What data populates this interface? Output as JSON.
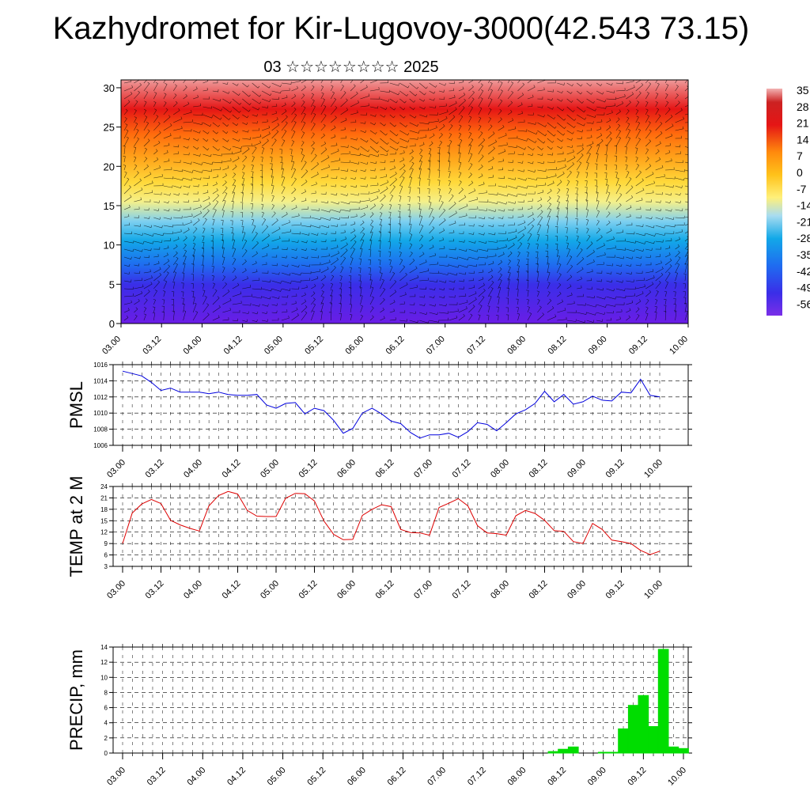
{
  "title": "Kazhydromet for Kir-Lugovoy-3000(42.543 73.15)",
  "subtitle": "03 ☆☆☆☆☆☆☆☆ 2025",
  "colors": {
    "pmsl_line": "#0000dd",
    "temp_line": "#dd0000",
    "precip_bar": "#00dd00"
  },
  "chart_data": [
    {
      "type": "heatmap",
      "title": "",
      "x_ticks": [
        "03.00",
        "03.12",
        "04.00",
        "04.12",
        "05.00",
        "05.12",
        "06.00",
        "06.12",
        "07.00",
        "07.12",
        "08.00",
        "08.12",
        "09.00",
        "09.12",
        "10.00"
      ],
      "y_ticks": [
        0,
        5,
        10,
        15,
        20,
        25,
        30
      ],
      "ylim": [
        0,
        31
      ],
      "colorbar_labels": [
        "35",
        "28",
        "21",
        "14",
        "7",
        "0",
        "-7",
        "-14",
        "-21",
        "-28",
        "-35",
        "-42",
        "-49",
        "-56"
      ],
      "overlay": "wind barbs"
    },
    {
      "type": "line",
      "ylabel": "PMSL",
      "x_ticks": [
        "03.00",
        "03.12",
        "04.00",
        "04.12",
        "05.00",
        "05.12",
        "06.00",
        "06.12",
        "07.00",
        "07.12",
        "08.00",
        "08.12",
        "09.00",
        "09.12",
        "10.00"
      ],
      "y_ticks": [
        1006,
        1008,
        1010,
        1012,
        1014,
        1016
      ],
      "ylim": [
        1006,
        1016
      ],
      "x_step_hours": 3,
      "values": [
        1015.2,
        1014.9,
        1014.6,
        1013.8,
        1012.8,
        1013.1,
        1012.6,
        1012.6,
        1012.6,
        1012.4,
        1012.6,
        1012.3,
        1012.2,
        1012.2,
        1012.3,
        1011.0,
        1010.6,
        1011.2,
        1011.3,
        1009.9,
        1010.6,
        1010.3,
        1009.1,
        1007.5,
        1008.1,
        1010.0,
        1010.6,
        1009.9,
        1009.0,
        1008.7,
        1007.6,
        1006.9,
        1007.3,
        1007.3,
        1007.5,
        1007.0,
        1007.7,
        1008.8,
        1008.6,
        1007.8,
        1008.8,
        1009.9,
        1010.4,
        1011.2,
        1012.7,
        1011.4,
        1012.3,
        1011.1,
        1011.4,
        1012.1,
        1011.6,
        1011.5,
        1012.6,
        1012.5,
        1014.2,
        1012.2,
        1012.0
      ]
    },
    {
      "type": "line",
      "ylabel": "TEMP at 2 M",
      "x_ticks": [
        "03.00",
        "03.12",
        "04.00",
        "04.12",
        "05.00",
        "05.12",
        "06.00",
        "06.12",
        "07.00",
        "07.12",
        "08.00",
        "08.12",
        "09.00",
        "09.12",
        "10.00"
      ],
      "y_ticks": [
        3,
        6,
        9,
        12,
        15,
        18,
        21,
        24
      ],
      "ylim": [
        3,
        24
      ],
      "x_step_hours": 3,
      "values": [
        9.0,
        17.0,
        19.4,
        20.6,
        19.5,
        15.1,
        13.9,
        13.0,
        12.3,
        18.9,
        21.6,
        22.7,
        22.0,
        17.7,
        16.2,
        16.1,
        16.1,
        20.9,
        22.2,
        22.1,
        20.2,
        14.9,
        11.4,
        10.0,
        10.1,
        16.4,
        18.0,
        19.2,
        18.7,
        12.7,
        11.9,
        11.8,
        11.2,
        18.5,
        19.6,
        20.8,
        18.9,
        13.7,
        11.8,
        11.6,
        11.2,
        16.3,
        17.7,
        16.9,
        15.1,
        12.4,
        12.2,
        9.5,
        9.0,
        14.3,
        12.7,
        9.9,
        9.5,
        9.0,
        7.2,
        6.1,
        7.0
      ]
    },
    {
      "type": "bar",
      "ylabel": "PRECIP, mm",
      "x_ticks": [
        "03.00",
        "03.12",
        "04.00",
        "04.12",
        "05.00",
        "05.12",
        "06.00",
        "06.12",
        "07.00",
        "07.12",
        "08.00",
        "08.12",
        "09.00",
        "09.12",
        "10.00"
      ],
      "y_ticks": [
        0,
        2,
        4,
        6,
        8,
        10,
        12,
        14
      ],
      "ylim": [
        0,
        14
      ],
      "x_step_hours": 3,
      "values": [
        0,
        0,
        0,
        0,
        0,
        0,
        0,
        0,
        0,
        0,
        0,
        0,
        0,
        0,
        0,
        0,
        0,
        0,
        0,
        0,
        0,
        0,
        0,
        0,
        0,
        0,
        0,
        0,
        0,
        0,
        0,
        0,
        0,
        0,
        0,
        0,
        0,
        0,
        0,
        0,
        0,
        0,
        0,
        0.2,
        0.5,
        0.8,
        0,
        0,
        0.1,
        0.1,
        3.2,
        6.3,
        7.6,
        3.5,
        13.7,
        0.8,
        0.6
      ]
    }
  ]
}
